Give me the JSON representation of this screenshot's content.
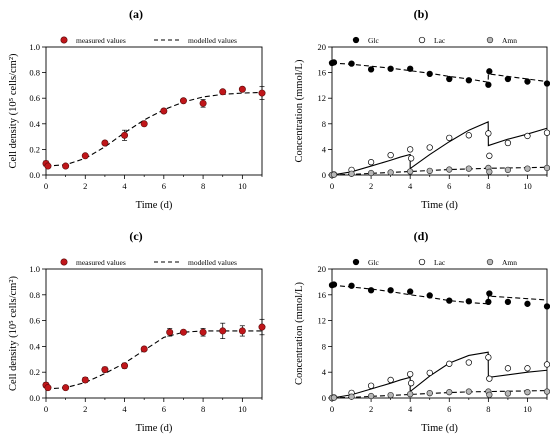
{
  "chart_data": [
    {
      "panel": "(a)",
      "type": "scatter",
      "xlabel": "Time (d)",
      "ylabel": "Cell density (10⁵ cells/cm²)",
      "xlim": [
        0,
        11
      ],
      "ylim": [
        0,
        1.0
      ],
      "xticks": [
        "0",
        "2",
        "4",
        "6",
        "8",
        "10"
      ],
      "yticks": [
        "0.0",
        "0.2",
        "0.4",
        "0.6",
        "0.8",
        "1.0"
      ],
      "legend": {
        "measured": "measured values",
        "modelled": "modelled values"
      },
      "measured": {
        "x": [
          0,
          0.1,
          1,
          2,
          3,
          4,
          5,
          6,
          7,
          8,
          9,
          10,
          11
        ],
        "y": [
          0.09,
          0.07,
          0.07,
          0.15,
          0.25,
          0.31,
          0.4,
          0.5,
          0.58,
          0.56,
          0.65,
          0.67,
          0.64
        ],
        "err": [
          0.02,
          0.01,
          0.01,
          0.01,
          0.01,
          0.04,
          0.01,
          0.01,
          0.01,
          0.03,
          0.01,
          0.01,
          0.05
        ]
      },
      "modelled": {
        "x": [
          0,
          1,
          2,
          3,
          4,
          5,
          6,
          7,
          8,
          9,
          10,
          11
        ],
        "y": [
          0.07,
          0.08,
          0.13,
          0.22,
          0.33,
          0.43,
          0.51,
          0.57,
          0.61,
          0.63,
          0.64,
          0.645
        ]
      }
    },
    {
      "panel": "(b)",
      "type": "line",
      "xlabel": "Time (d)",
      "ylabel": "Concentration (mmol/L)",
      "xlim": [
        0,
        11
      ],
      "ylim": [
        0,
        20
      ],
      "xticks": [
        "0",
        "2",
        "4",
        "6",
        "8",
        "10"
      ],
      "yticks": [
        "0",
        "4",
        "8",
        "12",
        "16",
        "20"
      ],
      "legend": [
        "Glc",
        "Lac",
        "Amn"
      ],
      "series": [
        {
          "name": "Glc",
          "marker": "filled",
          "x": [
            0,
            0.1,
            1,
            2,
            3,
            4,
            5,
            6,
            7,
            8,
            8.05,
            9,
            10,
            11
          ],
          "y": [
            17.5,
            17.6,
            17.4,
            16.5,
            16.6,
            16.6,
            15.8,
            15.0,
            14.8,
            14.1,
            16.2,
            15.0,
            14.6,
            14.3
          ]
        },
        {
          "name": "Lac",
          "marker": "open",
          "x": [
            0,
            0.1,
            1,
            2,
            3,
            4,
            4.05,
            5,
            6,
            7,
            8,
            8.05,
            9,
            10,
            11
          ],
          "y": [
            0.0,
            0.1,
            0.8,
            2.0,
            3.1,
            4.0,
            2.6,
            4.3,
            5.8,
            6.2,
            6.5,
            3.0,
            5.0,
            6.1,
            6.6
          ]
        },
        {
          "name": "Amn",
          "marker": "grey",
          "x": [
            0,
            0.1,
            1,
            2,
            3,
            4,
            5,
            6,
            7,
            8,
            8.05,
            9,
            10,
            11
          ],
          "y": [
            0.0,
            0.05,
            0.2,
            0.3,
            0.4,
            0.55,
            0.65,
            0.85,
            1.0,
            1.1,
            0.5,
            0.8,
            1.0,
            1.1
          ]
        }
      ],
      "model": [
        {
          "name": "Glc",
          "style": "dashed",
          "x": [
            0,
            1,
            2,
            3,
            4,
            5,
            6,
            7,
            7.99,
            8,
            9,
            10,
            11
          ],
          "y": [
            17.5,
            17.3,
            17.0,
            16.7,
            16.3,
            15.9,
            15.4,
            15.0,
            14.5,
            15.8,
            15.4,
            15.0,
            14.6
          ]
        },
        {
          "name": "Lac",
          "style": "solid",
          "x": [
            0,
            1,
            2,
            3,
            3.5,
            4,
            4,
            5,
            6,
            7,
            7.99,
            8,
            9,
            10,
            11
          ],
          "y": [
            0,
            0.5,
            1.4,
            2.3,
            2.8,
            3.2,
            1.0,
            3.2,
            5.2,
            7.0,
            8.3,
            4.6,
            5.6,
            6.4,
            7.3
          ]
        },
        {
          "name": "Amn",
          "style": "dashed",
          "x": [
            0,
            1,
            2,
            3,
            4,
            5,
            6,
            7,
            8,
            9,
            10,
            11
          ],
          "y": [
            0,
            0.1,
            0.25,
            0.4,
            0.55,
            0.7,
            0.85,
            0.95,
            1.05,
            1.1,
            1.15,
            1.2
          ]
        }
      ]
    },
    {
      "panel": "(c)",
      "type": "scatter",
      "xlabel": "Time (d)",
      "ylabel": "Cell density (10⁵ cells/cm²)",
      "xlim": [
        0,
        11
      ],
      "ylim": [
        0,
        1.0
      ],
      "xticks": [
        "0",
        "2",
        "4",
        "6",
        "8",
        "10"
      ],
      "yticks": [
        "0.0",
        "0.2",
        "0.4",
        "0.6",
        "0.8",
        "1.0"
      ],
      "legend": {
        "measured": "measured values",
        "modelled": "modelled values"
      },
      "measured": {
        "x": [
          0,
          0.1,
          1,
          2,
          3,
          4,
          5,
          6.3,
          7,
          8,
          9,
          10,
          11
        ],
        "y": [
          0.1,
          0.08,
          0.08,
          0.14,
          0.22,
          0.25,
          0.38,
          0.51,
          0.51,
          0.51,
          0.52,
          0.52,
          0.55
        ],
        "err": [
          0.02,
          0.01,
          0.01,
          0.02,
          0.02,
          0.02,
          0.01,
          0.03,
          0.01,
          0.03,
          0.06,
          0.04,
          0.06
        ]
      },
      "modelled": {
        "x": [
          0,
          1,
          2,
          3,
          4,
          5,
          6,
          7,
          8,
          9,
          10,
          11
        ],
        "y": [
          0.07,
          0.08,
          0.12,
          0.19,
          0.27,
          0.37,
          0.47,
          0.51,
          0.52,
          0.52,
          0.52,
          0.52
        ]
      }
    },
    {
      "panel": "(d)",
      "type": "line",
      "xlabel": "Time (d)",
      "ylabel": "Concentration (mmol/L)",
      "xlim": [
        0,
        11
      ],
      "ylim": [
        0,
        20
      ],
      "xticks": [
        "0",
        "2",
        "4",
        "6",
        "8",
        "10"
      ],
      "yticks": [
        "0",
        "4",
        "8",
        "12",
        "16",
        "20"
      ],
      "legend": [
        "Glc",
        "Lac",
        "Amn"
      ],
      "series": [
        {
          "name": "Glc",
          "marker": "filled",
          "x": [
            0,
            0.1,
            1,
            2,
            3,
            4,
            5,
            6,
            7,
            8,
            8.05,
            9,
            10,
            11
          ],
          "y": [
            17.5,
            17.6,
            17.4,
            16.7,
            16.7,
            16.5,
            15.9,
            15.1,
            15.0,
            14.9,
            16.2,
            14.9,
            14.6,
            14.2
          ]
        },
        {
          "name": "Lac",
          "marker": "open",
          "x": [
            0,
            0.1,
            1,
            2,
            3,
            4,
            4.05,
            5,
            6,
            7,
            8,
            8.05,
            9,
            10,
            11
          ],
          "y": [
            0.0,
            0.1,
            0.8,
            1.9,
            2.8,
            3.7,
            2.3,
            3.9,
            5.3,
            5.5,
            6.3,
            3.0,
            4.6,
            4.6,
            5.2
          ]
        },
        {
          "name": "Amn",
          "marker": "grey",
          "x": [
            0,
            0.1,
            1,
            2,
            3,
            4,
            5,
            6,
            7,
            8,
            8.05,
            9,
            10,
            11
          ],
          "y": [
            0.0,
            0.05,
            0.2,
            0.3,
            0.45,
            0.6,
            0.75,
            0.9,
            1.0,
            1.0,
            0.5,
            0.7,
            0.9,
            1.0
          ]
        }
      ],
      "model": [
        {
          "name": "Glc",
          "style": "dashed",
          "x": [
            0,
            1,
            2,
            3,
            4,
            5,
            6,
            7,
            7.99,
            8,
            9,
            10,
            11
          ],
          "y": [
            17.5,
            17.2,
            16.9,
            16.5,
            16.0,
            15.6,
            15.1,
            14.8,
            14.6,
            15.8,
            15.6,
            15.4,
            15.2
          ]
        },
        {
          "name": "Lac",
          "style": "solid",
          "x": [
            0,
            1,
            2,
            3,
            3.5,
            4,
            4,
            5,
            6,
            7,
            7.99,
            8,
            9,
            10,
            11
          ],
          "y": [
            0,
            0.5,
            1.4,
            2.3,
            2.8,
            3.2,
            1.0,
            3.4,
            5.4,
            6.6,
            7.1,
            3.2,
            3.6,
            4.0,
            4.3
          ]
        },
        {
          "name": "Amn",
          "style": "dashed",
          "x": [
            0,
            1,
            2,
            3,
            4,
            5,
            6,
            7,
            8,
            9,
            10,
            11
          ],
          "y": [
            0,
            0.1,
            0.25,
            0.4,
            0.55,
            0.7,
            0.85,
            0.95,
            1.0,
            1.05,
            1.1,
            1.15
          ]
        }
      ]
    }
  ]
}
